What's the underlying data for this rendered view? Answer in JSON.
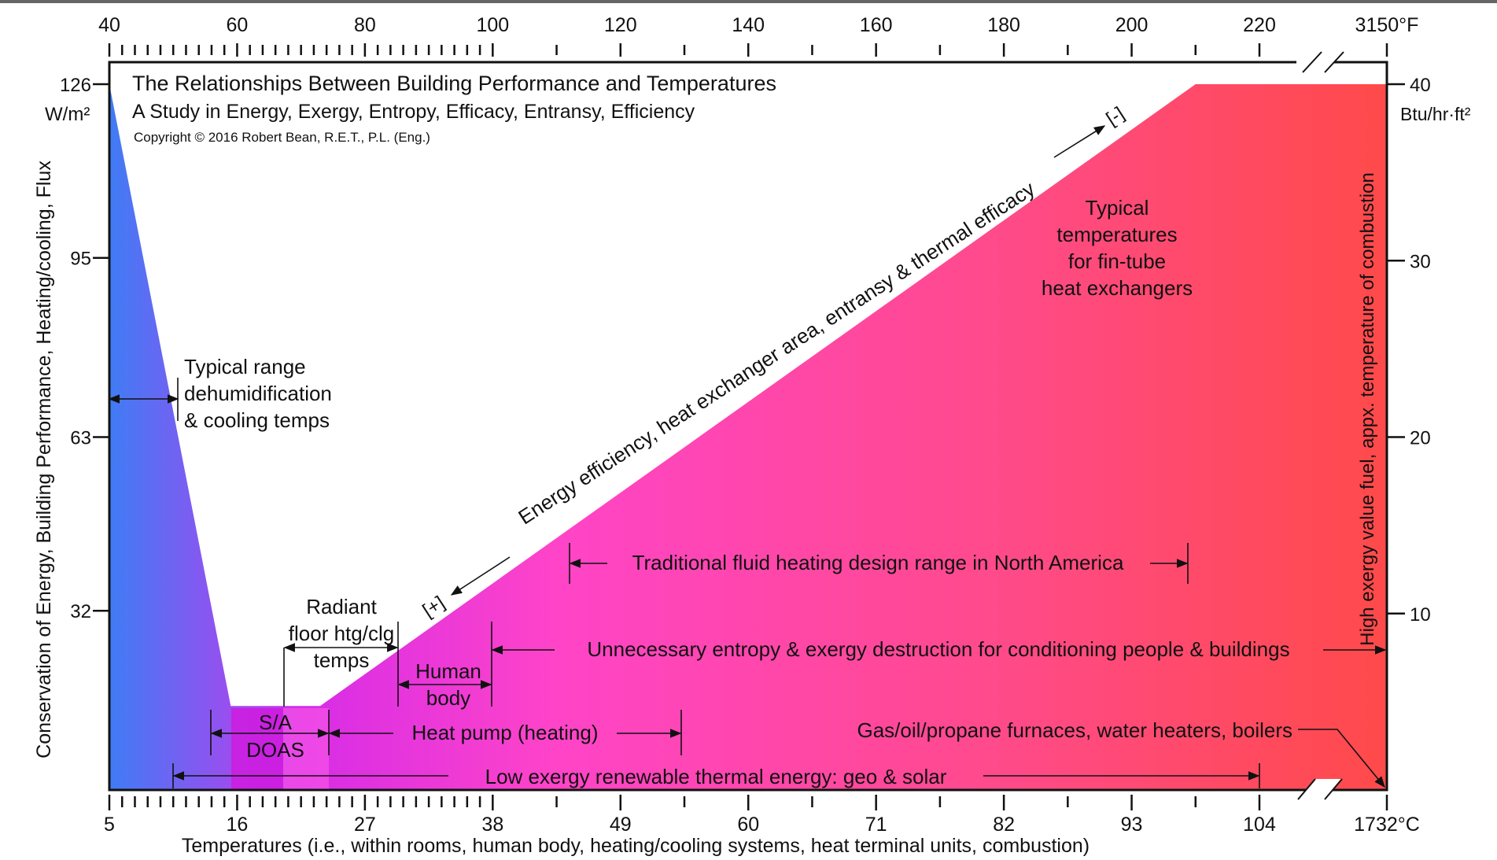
{
  "chart_data": {
    "type": "area",
    "title": "The Relationships Between Building Performance and Temperatures",
    "subtitle": "A Study in  Energy, Exergy, Entropy, Efficacy, Entransy, Efficiency",
    "copyright": "Copyright © 2016 Robert Bean, R.E.T., P.L. (Eng.)",
    "x_top": {
      "label_units": "°F",
      "ticks": [
        "40",
        "60",
        "80",
        "100",
        "120",
        "140",
        "160",
        "180",
        "200",
        "220",
        "3150°F"
      ],
      "range": [
        40,
        3150
      ]
    },
    "x_bottom": {
      "label": "Temperatures (i.e., within rooms, human body, heating/cooling systems, heat terminal units, combustion)",
      "ticks": [
        "5",
        "16",
        "27",
        "38",
        "49",
        "60",
        "71",
        "82",
        "93",
        "104",
        "1732°C"
      ],
      "range": [
        5,
        1732
      ]
    },
    "y_left": {
      "label": "Conservation of Energy, Building Performance, Heating/cooling, Flux",
      "unit": "W/m²",
      "ticks": [
        "126",
        "95",
        "63",
        "32"
      ],
      "range": [
        0,
        126
      ]
    },
    "y_right": {
      "label": "High exergy value fuel, appx. temperature of combustion",
      "unit": "Btu/hr·ft²",
      "ticks": [
        "40",
        "30",
        "20",
        "10"
      ],
      "range": [
        0,
        40
      ]
    },
    "envelope": {
      "x_F": [
        40,
        59,
        66,
        73,
        210,
        240
      ],
      "y_Wm2": [
        126,
        15,
        15,
        15,
        126,
        126
      ]
    },
    "colors": {
      "cold": "#3f7cf5",
      "mid": "#d62ce8",
      "warm": "#ff44c8",
      "hot": "#ff4a4a",
      "doas": "#d11de0"
    },
    "annotations": {
      "cooling": [
        "Typical range",
        "dehumidification",
        "& cooling temps"
      ],
      "radiant": [
        "Radiant",
        "floor htg/clg",
        "temps"
      ],
      "human": [
        "Human",
        "body"
      ],
      "doas": [
        "S/A",
        "DOAS"
      ],
      "heat_pump": "Heat pump (heating)",
      "low_exergy": "Low exergy renewable thermal energy: geo & solar",
      "unnecessary": "Unnecessary entropy & exergy destruction for conditioning people & buildings",
      "traditional": "Traditional fluid heating design range in North America",
      "gas": "Gas/oil/propane furnaces, water heaters, boilers",
      "fin_tube": [
        "Typical",
        "temperatures",
        "for fin-tube",
        "heat exchangers"
      ],
      "efficiency": "Energy efficiency, heat exchanger area, entransy & thermal efficacy",
      "plus": "[+]",
      "minus": "[-]"
    }
  }
}
